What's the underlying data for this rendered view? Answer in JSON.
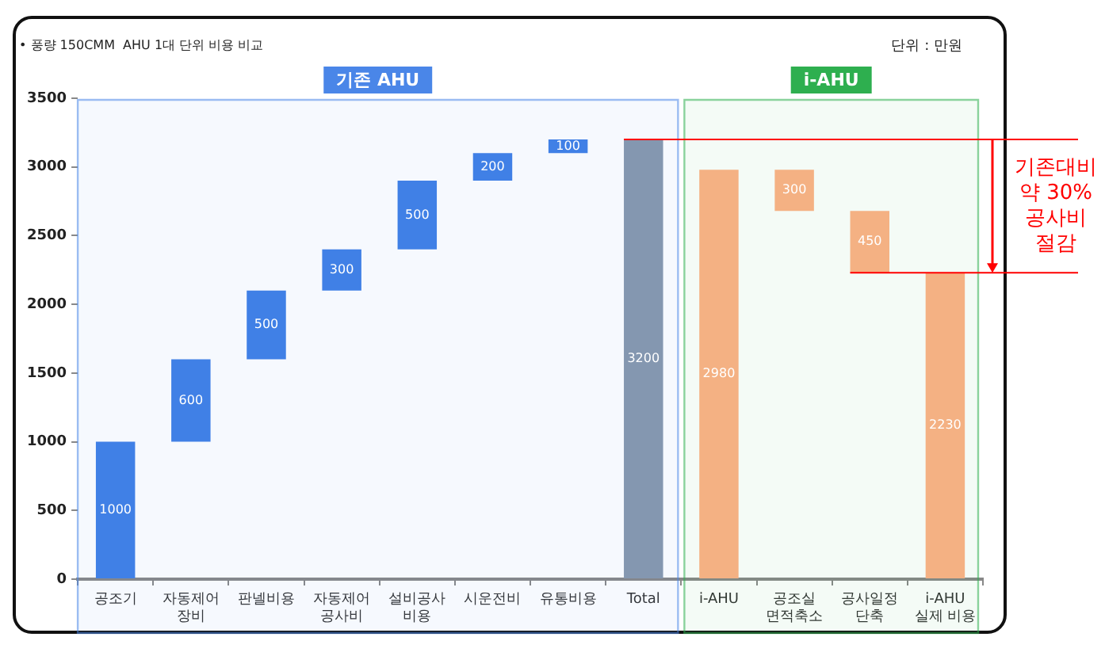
{
  "chart_data": {
    "type": "bar",
    "title": "• 풍량 150CMM  AHU 1대 단위 비용 비교",
    "subtitle": "단위 : 만원",
    "categories": [
      "공조기",
      "자동제어\n장비",
      "판넬비용",
      "자동제어\n공사비",
      "설비공사\n비용",
      "시운전비",
      "유통비용",
      "Total",
      "i-AHU",
      "공조실\n면적축소",
      "공사일정\n단축",
      "i-AHU\n실제 비용"
    ],
    "values": [
      1000,
      600,
      500,
      300,
      500,
      200,
      100,
      3200,
      2980,
      300,
      450,
      2230
    ],
    "base": [
      0,
      1000,
      1600,
      2100,
      2400,
      2900,
      3100,
      0,
      0,
      2680,
      2230,
      0
    ],
    "colors": [
      "#4080e6",
      "#4080e6",
      "#4080e6",
      "#4080e6",
      "#4080e6",
      "#4080e6",
      "#4080e6",
      "#8497b0",
      "#f4b183",
      "#f4b183",
      "#f4b183",
      "#f4b183"
    ],
    "ylim": [
      0,
      3500
    ],
    "yticks": [
      0,
      500,
      1000,
      1500,
      2000,
      2500,
      3000,
      3500
    ],
    "data_labels": true,
    "ref_lines": [
      {
        "axis": "y",
        "value": 3200,
        "color": "#ff0000"
      },
      {
        "axis": "y",
        "value": 2230,
        "color": "#ff0000"
      }
    ],
    "bands": [
      {
        "axis": "x",
        "from": "공조기",
        "to": "Total",
        "label": "기존 AHU",
        "color": "#4a86e8"
      },
      {
        "axis": "x",
        "from": "i-AHU",
        "to": "i-AHU\n실제 비용",
        "label": "i-AHU",
        "color": "#2eaf4f"
      }
    ],
    "annotations": [
      "기존대비\n약 30%\n공사비\n절감"
    ]
  }
}
